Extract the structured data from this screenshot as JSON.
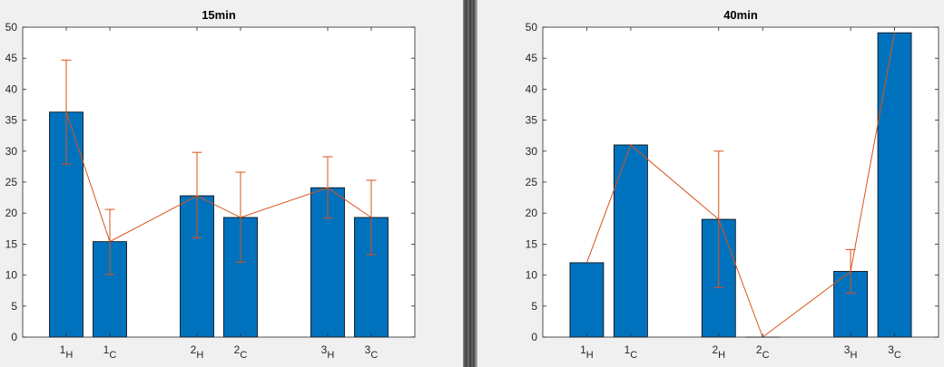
{
  "chart_data": [
    {
      "type": "bar",
      "title": "15min",
      "categories": [
        {
          "base": "1",
          "sub": "H"
        },
        {
          "base": "1",
          "sub": "C"
        },
        {
          "base": "2",
          "sub": "H"
        },
        {
          "base": "2",
          "sub": "C"
        },
        {
          "base": "3",
          "sub": "H"
        },
        {
          "base": "3",
          "sub": "C"
        }
      ],
      "x": [
        1,
        2,
        4,
        5,
        7,
        8
      ],
      "xlim": [
        0,
        9
      ],
      "values": [
        36.3,
        15.4,
        22.8,
        19.3,
        24.1,
        19.3
      ],
      "error_low": [
        27.9,
        10.1,
        16.0,
        12.1,
        19.2,
        13.3
      ],
      "error_high": [
        44.7,
        20.6,
        29.8,
        26.6,
        29.1,
        25.3
      ],
      "ylim": [
        0,
        50
      ],
      "yticks": [
        0,
        5,
        10,
        15,
        20,
        25,
        30,
        35,
        40,
        45,
        50
      ],
      "xlabel": "",
      "ylabel": "",
      "grid": false,
      "colors": {
        "bar": "#0072bd",
        "line": "#d95319"
      }
    },
    {
      "type": "bar",
      "title": "40min",
      "categories": [
        {
          "base": "1",
          "sub": "H"
        },
        {
          "base": "1",
          "sub": "C"
        },
        {
          "base": "2",
          "sub": "H"
        },
        {
          "base": "2",
          "sub": "C"
        },
        {
          "base": "3",
          "sub": "H"
        },
        {
          "base": "3",
          "sub": "C"
        }
      ],
      "x": [
        1,
        2,
        4,
        5,
        7,
        8
      ],
      "xlim": [
        0,
        9
      ],
      "values": [
        12.0,
        31.0,
        19.0,
        0.0,
        10.6,
        49.1
      ],
      "error_low": [
        12.0,
        31.0,
        8.0,
        0.0,
        7.1,
        49.1
      ],
      "error_high": [
        12.0,
        31.0,
        30.0,
        0.0,
        14.1,
        49.1
      ],
      "ylim": [
        0,
        50
      ],
      "yticks": [
        0,
        5,
        10,
        15,
        20,
        25,
        30,
        35,
        40,
        45,
        50
      ],
      "xlabel": "",
      "ylabel": "",
      "grid": false,
      "colors": {
        "bar": "#0072bd",
        "line": "#d95319"
      }
    }
  ]
}
